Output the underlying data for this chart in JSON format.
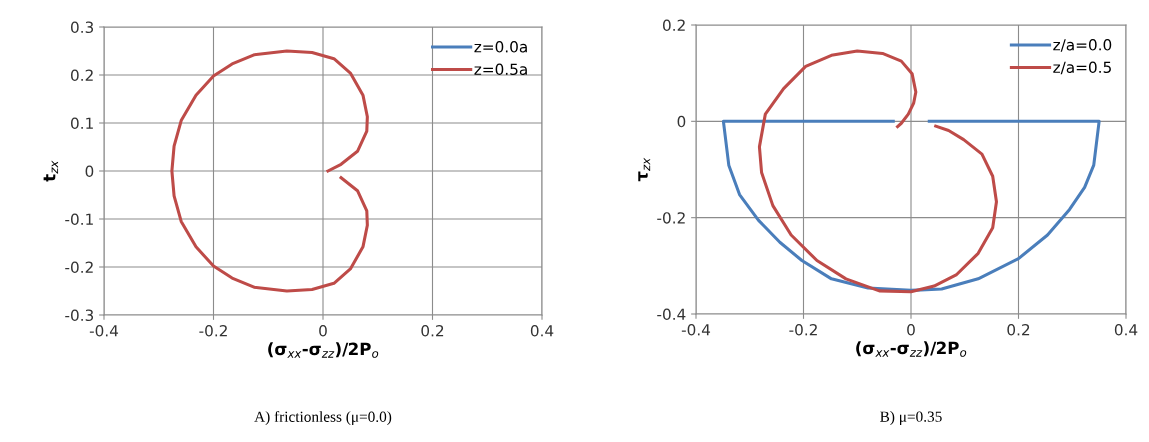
{
  "chart_data": [
    {
      "type": "line",
      "xlabel": "(σ$_{xx}$-σ$_{zz}$)/2P$_{o}$",
      "ylabel": "t$_{zx}$",
      "xlim": [
        -0.4,
        0.4
      ],
      "ylim": [
        -0.3,
        0.3
      ],
      "xticks": [
        -0.4,
        -0.2,
        0,
        0.2,
        0.4
      ],
      "yticks": [
        -0.3,
        -0.2,
        -0.1,
        0,
        0.1,
        0.2,
        0.3
      ],
      "grid": true,
      "legend": "top right",
      "annotations": [
        "A) frictionless (μ=0.0)"
      ],
      "series": [
        {
          "name": "z=0.0a",
          "color": "#4a7ebb"
        },
        {
          "name": "z=0.5a",
          "color": "#be4b48",
          "x": [
            0.009,
            0.033,
            0.063,
            0.08,
            0.081,
            0.073,
            0.05,
            0.02,
            -0.02,
            -0.066,
            -0.126,
            -0.166,
            -0.2,
            -0.232,
            -0.259,
            -0.272,
            -0.276,
            -0.272,
            -0.259,
            -0.232,
            -0.2,
            -0.166,
            -0.126,
            -0.066,
            -0.02,
            0.02,
            0.05,
            0.073,
            0.081,
            0.08,
            0.063,
            0.033
          ],
          "values": [
            0,
            0.014,
            0.041,
            0.083,
            0.113,
            0.158,
            0.204,
            0.234,
            0.247,
            0.25,
            0.242,
            0.223,
            0.198,
            0.158,
            0.105,
            0.052,
            0,
            -0.052,
            -0.105,
            -0.158,
            -0.198,
            -0.223,
            -0.242,
            -0.25,
            -0.247,
            -0.234,
            -0.204,
            -0.158,
            -0.113,
            -0.083,
            -0.041,
            -0.014
          ]
        }
      ]
    },
    {
      "type": "line",
      "xlabel": "(σ$_{xx}$-σ$_{zz}$)/2P$_{o}$",
      "ylabel": "τ$_{zx}$",
      "xlim": [
        -0.4,
        0.4
      ],
      "ylim": [
        -0.4,
        0.2
      ],
      "xticks": [
        -0.4,
        -0.2,
        0,
        0.2,
        0.4
      ],
      "yticks": [
        -0.4,
        -0.2,
        0,
        0.2
      ],
      "grid": true,
      "legend": "top right",
      "annotations": [
        "B) μ=0.35"
      ],
      "series": [
        {
          "name": "z/a=0.0",
          "color": "#4a7ebb",
          "x": [
            -0.033,
            -0.349,
            -0.339,
            -0.319,
            -0.284,
            -0.244,
            -0.203,
            -0.148,
            -0.08,
            0,
            0.057,
            0.125,
            0.2,
            0.254,
            0.295,
            0.323,
            0.34,
            0.35,
            0.034
          ],
          "values": [
            0,
            0,
            -0.091,
            -0.152,
            -0.205,
            -0.251,
            -0.289,
            -0.327,
            -0.346,
            -0.351,
            -0.348,
            -0.327,
            -0.285,
            -0.236,
            -0.183,
            -0.137,
            -0.091,
            0,
            0
          ]
        },
        {
          "name": "z/a=0.5",
          "color": "#be4b48",
          "x": [
            -0.025,
            -0.018,
            -0.005,
            0.005,
            0.009,
            0.002,
            -0.018,
            -0.053,
            -0.1,
            -0.148,
            -0.196,
            -0.237,
            -0.271,
            -0.282,
            -0.278,
            -0.257,
            -0.223,
            -0.175,
            -0.121,
            -0.059,
            0,
            0.043,
            0.084,
            0.125,
            0.152,
            0.159,
            0.152,
            0.132,
            0.098,
            0.07,
            0.046
          ],
          "values": [
            -0.011,
            -0.004,
            0.015,
            0.038,
            0.061,
            0.099,
            0.125,
            0.141,
            0.146,
            0.137,
            0.114,
            0.068,
            0.015,
            -0.053,
            -0.106,
            -0.175,
            -0.236,
            -0.289,
            -0.327,
            -0.352,
            -0.354,
            -0.342,
            -0.319,
            -0.274,
            -0.221,
            -0.167,
            -0.114,
            -0.068,
            -0.038,
            -0.019,
            -0.01
          ]
        }
      ]
    }
  ]
}
